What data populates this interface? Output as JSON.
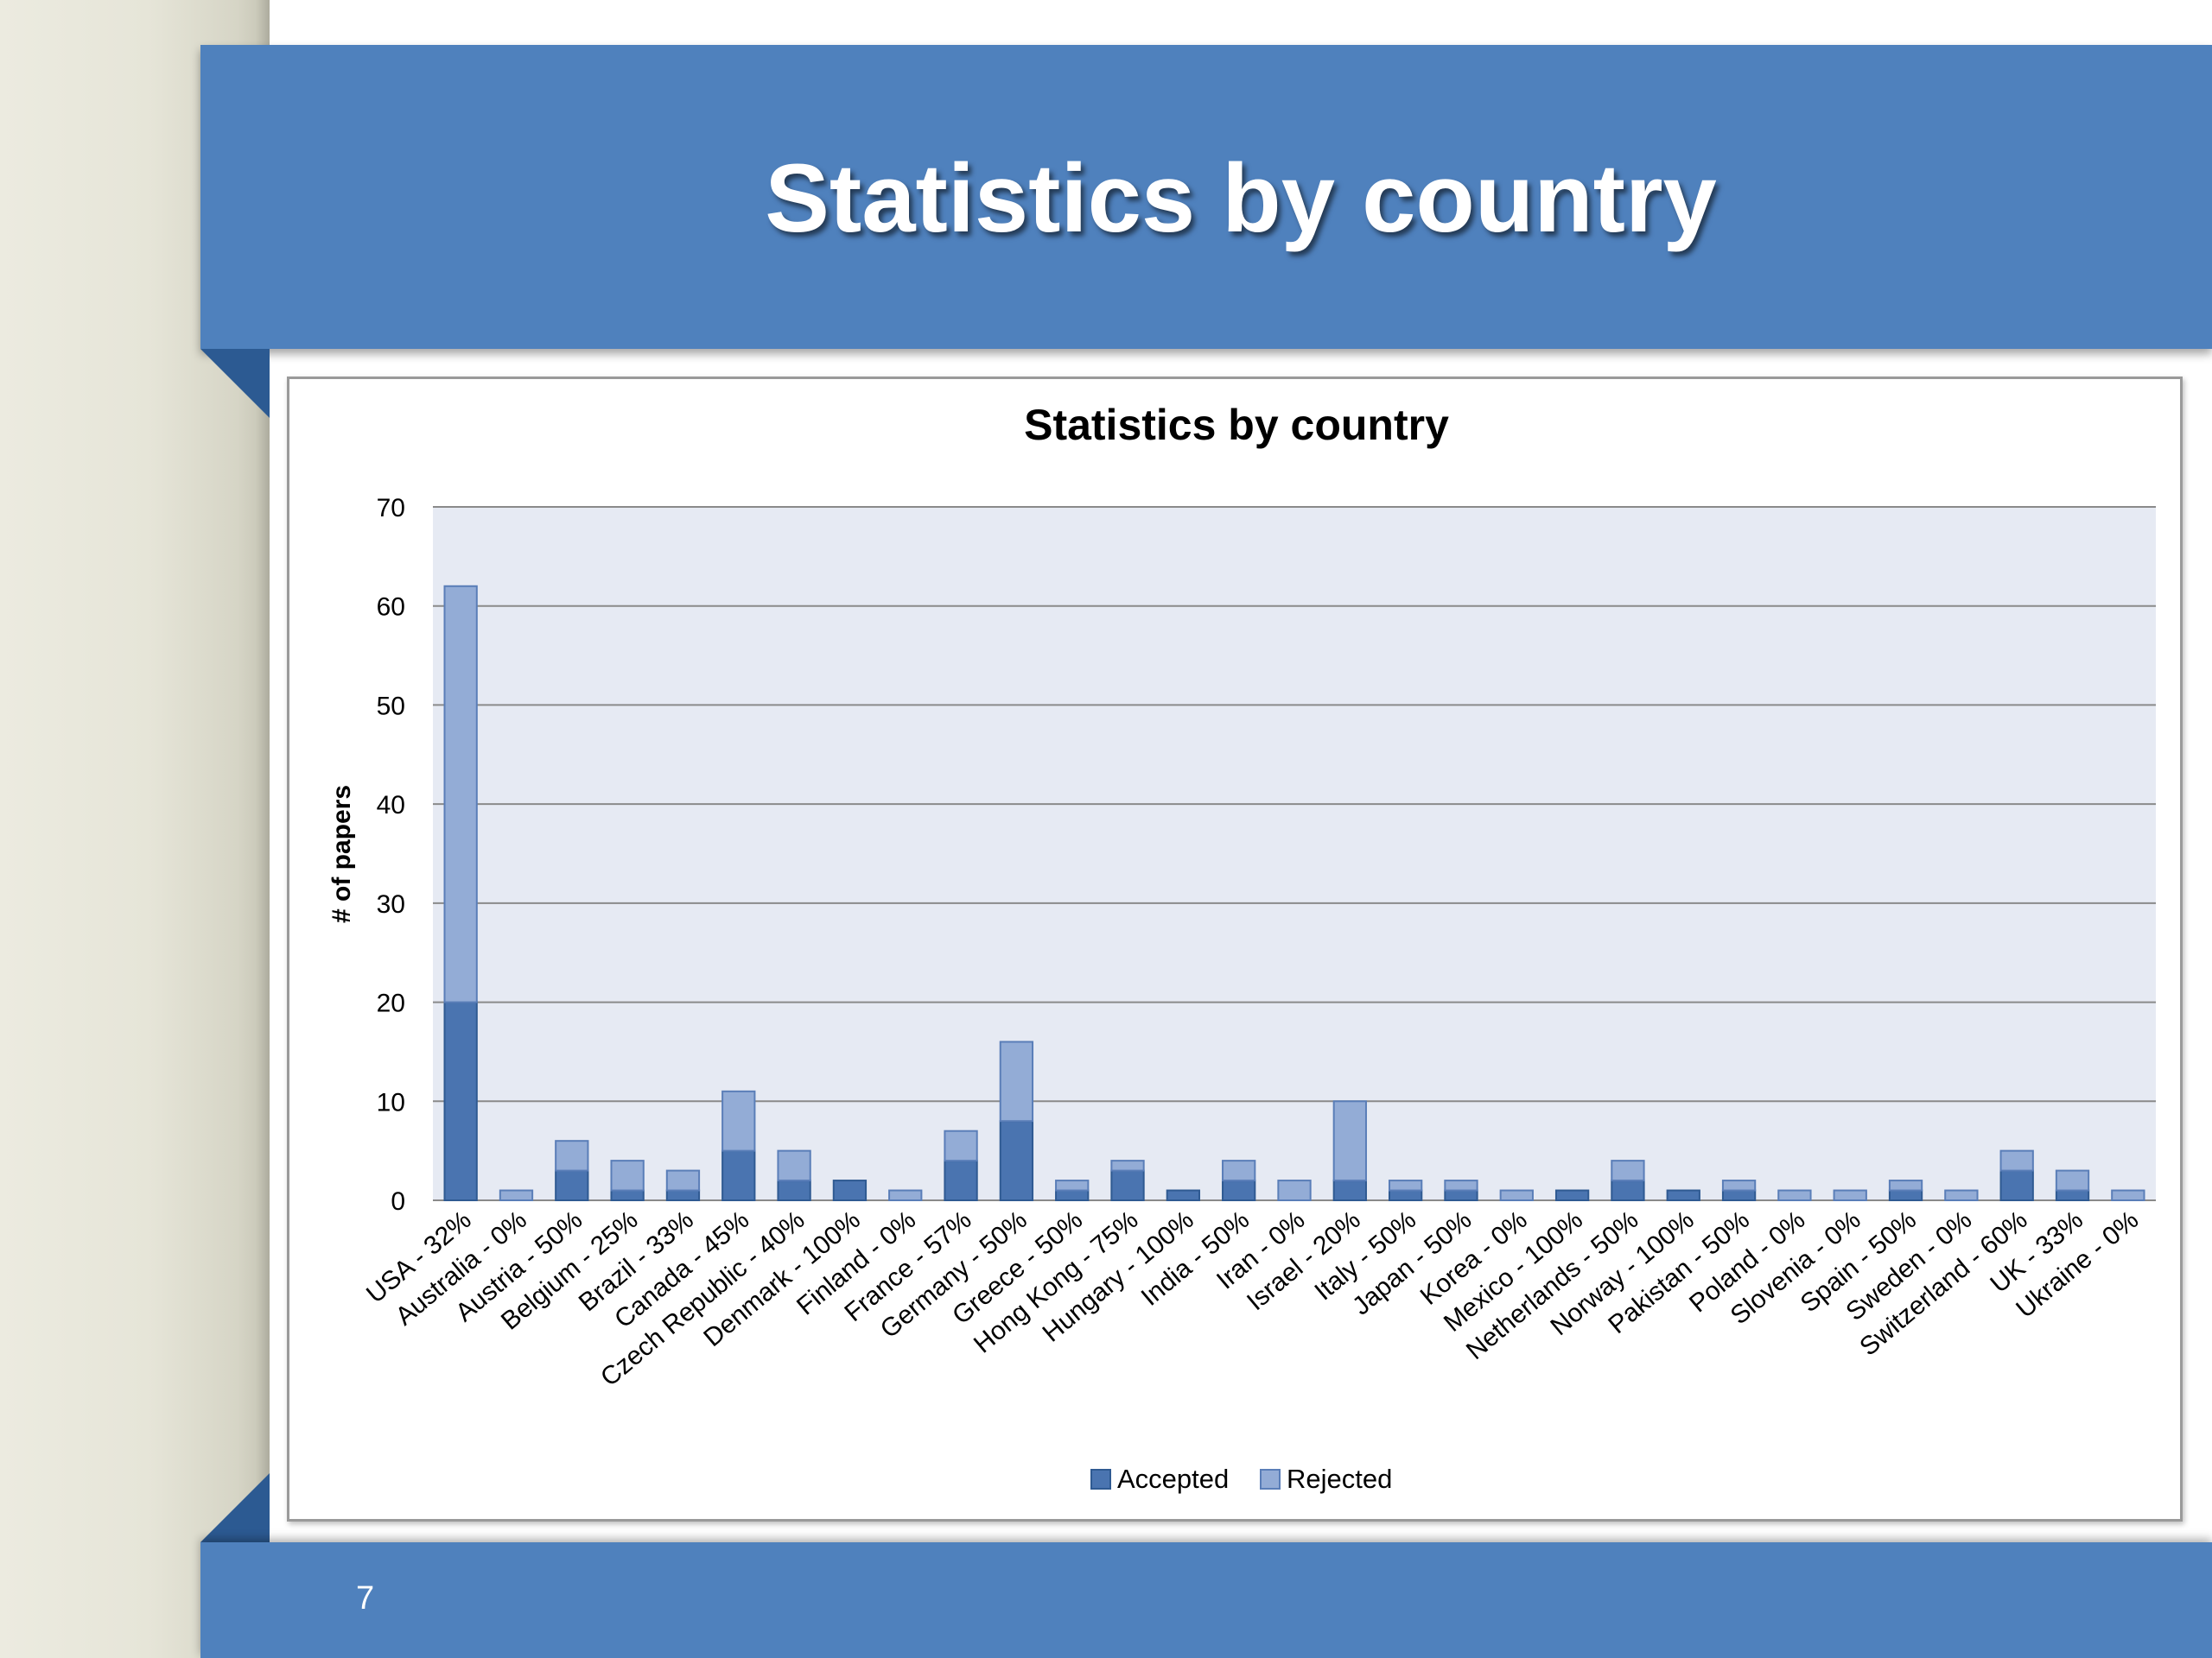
{
  "slide": {
    "title": "Statistics by country",
    "page_number": "7"
  },
  "colors": {
    "band": "#4f81bd",
    "accepted": "#4a74b0",
    "rejected": "#93acd6",
    "plot_bg": "#e6eaf3"
  },
  "chart_data": {
    "type": "bar",
    "stacked": true,
    "title": "Statistics by country",
    "xlabel": "",
    "ylabel": "# of papers",
    "ylim": [
      0,
      70
    ],
    "yticks": [
      0,
      10,
      20,
      30,
      40,
      50,
      60,
      70
    ],
    "grid": true,
    "legend_position": "bottom",
    "categories": [
      "USA - 32%",
      "Australia - 0%",
      "Austria - 50%",
      "Belgium - 25%",
      "Brazil - 33%",
      "Canada - 45%",
      "Czech Republic - 40%",
      "Denmark - 100%",
      "Finland - 0%",
      "France - 57%",
      "Germany - 50%",
      "Greece - 50%",
      "Hong Kong - 75%",
      "Hungary - 100%",
      "India - 50%",
      "Iran - 0%",
      "Israel - 20%",
      "Italy - 50%",
      "Japan - 50%",
      "Korea - 0%",
      "Mexico - 100%",
      "Netherlands - 50%",
      "Norway - 100%",
      "Pakistan - 50%",
      "Poland - 0%",
      "Slovenia - 0%",
      "Spain - 50%",
      "Sweden - 0%",
      "Switzerland - 60%",
      "UK - 33%",
      "Ukraine - 0%"
    ],
    "series": [
      {
        "name": "Accepted",
        "values": [
          20,
          0,
          3,
          1,
          1,
          5,
          2,
          2,
          0,
          4,
          8,
          1,
          3,
          1,
          2,
          0,
          2,
          1,
          1,
          0,
          1,
          2,
          1,
          1,
          0,
          0,
          1,
          0,
          3,
          1,
          0
        ]
      },
      {
        "name": "Rejected",
        "values": [
          42,
          1,
          3,
          3,
          2,
          6,
          3,
          0,
          1,
          3,
          8,
          1,
          1,
          0,
          2,
          2,
          8,
          1,
          1,
          1,
          0,
          2,
          0,
          1,
          1,
          1,
          1,
          1,
          2,
          2,
          1
        ]
      }
    ]
  }
}
